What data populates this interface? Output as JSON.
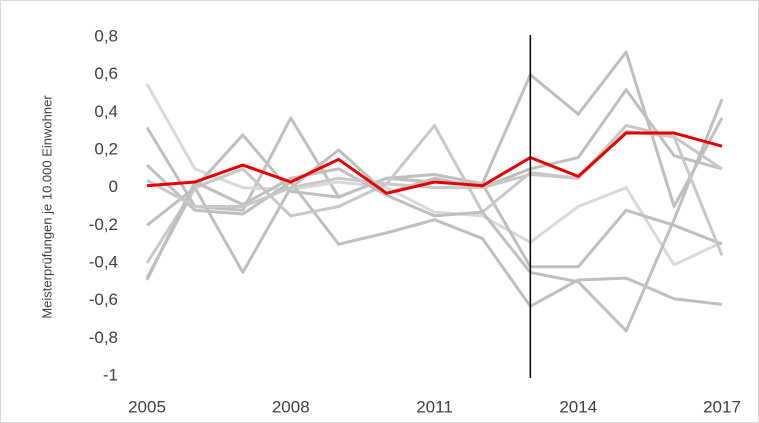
{
  "chart_data": {
    "type": "line",
    "y_label": "Meisterprüfungen je 10.000 Einwohner",
    "x": [
      2005,
      2006,
      2007,
      2008,
      2009,
      2010,
      2011,
      2012,
      2013,
      2014,
      2015,
      2016,
      2017
    ],
    "xlim": [
      2005,
      2017
    ],
    "xticks": [
      2005,
      2008,
      2011,
      2014,
      2017
    ],
    "ylim": [
      -1,
      0.8
    ],
    "yticks": [
      {
        "value": 0.8,
        "label": "0,8"
      },
      {
        "value": 0.6,
        "label": "0,6"
      },
      {
        "value": 0.4,
        "label": "0,4"
      },
      {
        "value": 0.2,
        "label": "0,2"
      },
      0,
      {
        "value": -0.2,
        "label": "-0,2"
      },
      {
        "value": -0.4,
        "label": "-0,4"
      },
      {
        "value": -0.6,
        "label": "-0,6"
      },
      {
        "value": -0.8,
        "label": "-0,8"
      },
      -1
    ],
    "vline": 2013,
    "vline_color": "#000000",
    "series": [
      {
        "color": "#bfbfbf",
        "values": [
          0.32,
          -0.1,
          -0.12,
          0.37,
          -0.05,
          0.05,
          0.03,
          0.02,
          0.6,
          0.39,
          0.72,
          -0.1,
          0.37
        ]
      },
      {
        "color": "#d9d9d9",
        "values": [
          0.55,
          0.1,
          0.0,
          -0.01,
          0.03,
          0.0,
          -0.13,
          -0.15,
          -0.29,
          -0.1,
          0.0,
          -0.41,
          -0.29
        ]
      },
      {
        "color": "#bfbfbf",
        "values": [
          -0.48,
          0.0,
          -0.45,
          0.0,
          0.2,
          -0.03,
          0.05,
          0.0,
          0.1,
          0.16,
          0.52,
          0.17,
          0.1
        ]
      },
      {
        "color": "#bfbfbf",
        "values": [
          -0.2,
          0.0,
          0.28,
          -0.02,
          -0.05,
          0.05,
          0.07,
          0.02,
          -0.42,
          -0.42,
          -0.12,
          -0.2,
          -0.3
        ]
      },
      {
        "color": "#bfbfbf",
        "values": [
          0.12,
          -0.12,
          -0.14,
          0.03,
          -0.3,
          -0.24,
          -0.17,
          -0.27,
          -0.63,
          -0.49,
          -0.48,
          -0.59,
          -0.62
        ]
      },
      {
        "color": "#c8c8c8",
        "values": [
          -0.4,
          0.0,
          0.1,
          -0.15,
          -0.1,
          0.02,
          0.33,
          -0.13,
          0.08,
          0.05,
          0.3,
          0.27,
          0.1
        ]
      },
      {
        "color": "#bfbfbf",
        "values": [
          -0.49,
          0.03,
          -0.09,
          0.05,
          0.1,
          -0.04,
          -0.15,
          -0.13,
          -0.45,
          -0.5,
          -0.76,
          -0.17,
          0.47
        ]
      },
      {
        "color": "#c8c8c8",
        "values": [
          0.04,
          -0.1,
          -0.1,
          0.0,
          0.05,
          0.02,
          0.0,
          0.0,
          0.07,
          0.05,
          0.33,
          0.27,
          -0.36
        ]
      },
      {
        "color": "#e60000",
        "width": 3,
        "values": [
          0.01,
          0.03,
          0.12,
          0.03,
          0.15,
          -0.03,
          0.03,
          0.01,
          0.16,
          0.06,
          0.29,
          0.29,
          0.22
        ]
      }
    ]
  }
}
